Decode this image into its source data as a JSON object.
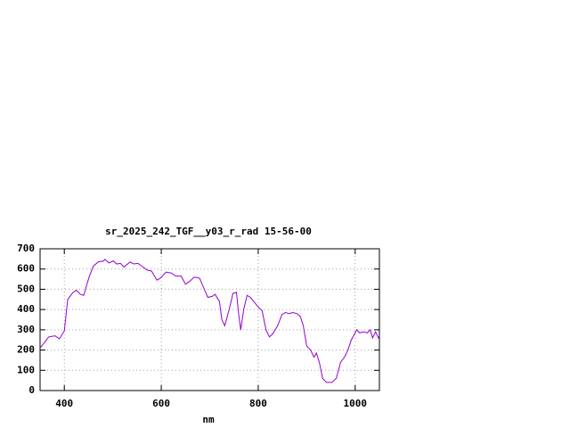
{
  "chart_data": {
    "type": "line",
    "title": "sr_2025_242_TGF__y03_r_rad 15-56-00",
    "x_label": "nm",
    "x": [
      350,
      368,
      381,
      390,
      400,
      407,
      418,
      425,
      433,
      440,
      451,
      460,
      470,
      481,
      484,
      492,
      501,
      508,
      516,
      523,
      536,
      543,
      552,
      571,
      580,
      591,
      598,
      610,
      621,
      630,
      641,
      650,
      659,
      668,
      679,
      687,
      696,
      705,
      711,
      720,
      725,
      731,
      740,
      748,
      755,
      760,
      764,
      770,
      777,
      784,
      794,
      803,
      808,
      816,
      823,
      830,
      840,
      849,
      856,
      864,
      871,
      880,
      887,
      893,
      900,
      908,
      915,
      920,
      926,
      933,
      941,
      952,
      961,
      970,
      978,
      985,
      992,
      1000,
      1003,
      1009,
      1018,
      1025,
      1031,
      1036,
      1042,
      1048,
      1050
    ],
    "series": [
      {
        "name": "sr_2025_242_TGF__y03_r_rad",
        "color": "#9400d3",
        "values": [
          210,
          265,
          270,
          255,
          295,
          450,
          485,
          495,
          475,
          470,
          560,
          615,
          635,
          640,
          648,
          630,
          640,
          625,
          628,
          610,
          635,
          625,
          628,
          595,
          590,
          545,
          555,
          585,
          580,
          565,
          565,
          525,
          540,
          560,
          555,
          510,
          460,
          465,
          475,
          440,
          350,
          320,
          400,
          480,
          485,
          370,
          300,
          400,
          470,
          460,
          430,
          405,
          395,
          300,
          265,
          280,
          320,
          375,
          385,
          380,
          385,
          380,
          365,
          320,
          220,
          200,
          165,
          185,
          140,
          60,
          40,
          40,
          60,
          140,
          165,
          200,
          250,
          285,
          300,
          285,
          290,
          285,
          300,
          260,
          290,
          260,
          270
        ]
      }
    ],
    "xlim": [
      350,
      1050
    ],
    "ylim": [
      0,
      700
    ],
    "xticks": [
      400,
      600,
      800,
      1000
    ],
    "yticks": [
      0,
      100,
      200,
      300,
      400,
      500,
      600,
      700
    ],
    "grid": true
  }
}
